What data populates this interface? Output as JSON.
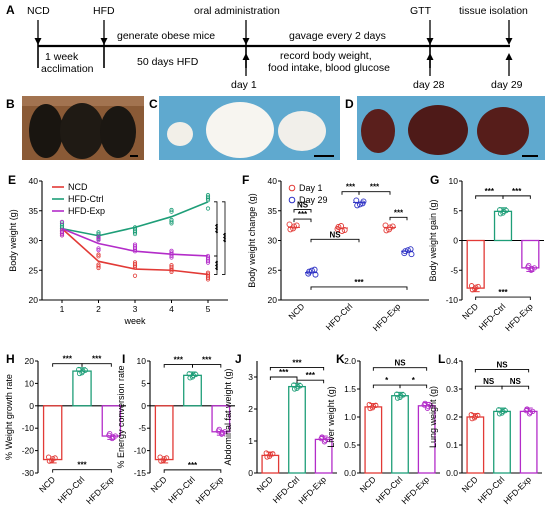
{
  "panels": {
    "A": "A",
    "B": "B",
    "C": "C",
    "D": "D",
    "E": "E",
    "F": "F",
    "G": "G",
    "H": "H",
    "I": "I",
    "J": "J",
    "K": "K",
    "L": "L"
  },
  "timeline": {
    "top": [
      "NCD",
      "HFD",
      "oral administration",
      "GTT",
      "tissue isolation"
    ],
    "segments": [
      "generate obese mice",
      "gavage every 2 days"
    ],
    "below": [
      "1 week",
      "acclimation",
      "50 days HFD",
      "record body weight,",
      "food intake, blood glucose"
    ],
    "days": [
      "day 1",
      "day 28",
      "day 29"
    ]
  },
  "colors": {
    "ncd": "#e23a36",
    "ctrl": "#1e9e78",
    "exp": "#b32cc9",
    "day1": "#e23a36",
    "day29": "#2b2fc4",
    "photo_blue": "#5fa9cf",
    "photo_wood": "#8a5a36"
  },
  "groups": [
    "NCD",
    "HFD-Ctrl",
    "HFD-Exp"
  ],
  "chart_data": [
    {
      "id": "E",
      "type": "line",
      "xlabel": "week",
      "ylabel": "Body weight (g)",
      "x": [
        1,
        2,
        3,
        4,
        5
      ],
      "ylim": [
        20,
        40
      ],
      "yticks": [
        20,
        25,
        30,
        35,
        40
      ],
      "series": [
        {
          "name": "NCD",
          "values": [
            32,
            26.5,
            25.2,
            25,
            24.3
          ]
        },
        {
          "name": "HFD-Ctrl",
          "values": [
            32,
            30.8,
            32.2,
            34,
            36.5
          ]
        },
        {
          "name": "HFD-Exp",
          "values": [
            32,
            29.5,
            28.2,
            27.7,
            27.4
          ]
        }
      ],
      "annotations": [
        "***",
        "***",
        "***"
      ]
    },
    {
      "id": "F",
      "type": "scatter",
      "ylabel": "Body weight change (g)",
      "ylim": [
        20,
        40
      ],
      "yticks": [
        20,
        25,
        30,
        35,
        40
      ],
      "categories": [
        "NCD",
        "HFD-Ctrl",
        "HFD-Exp"
      ],
      "series": [
        {
          "name": "Day 1",
          "values": [
            32.2,
            32.1,
            32.2
          ]
        },
        {
          "name": "Day 29",
          "values": [
            24.6,
            36.4,
            28.2
          ]
        }
      ],
      "annotations": [
        "NS",
        "***",
        "***",
        "***",
        "NS",
        "***",
        "***"
      ]
    },
    {
      "id": "G",
      "type": "bar",
      "ylabel": "Body weight gain (g)",
      "ylim": [
        -10,
        10
      ],
      "yticks": [
        -10,
        -5,
        0,
        5,
        10
      ],
      "categories": [
        "NCD",
        "HFD-Ctrl",
        "HFD-Exp"
      ],
      "values": [
        -8,
        4.9,
        -4.6
      ],
      "annotations": [
        "***",
        "***",
        "***"
      ]
    },
    {
      "id": "H",
      "type": "bar",
      "ylabel": "% Weight growth rate",
      "ylim": [
        -30,
        20
      ],
      "yticks": [
        -30,
        -20,
        -10,
        0,
        10,
        20
      ],
      "categories": [
        "NCD",
        "HFD-Ctrl",
        "HFD-Exp"
      ],
      "values": [
        -24,
        15.5,
        -13.5
      ],
      "annotations": [
        "***",
        "***",
        "***"
      ]
    },
    {
      "id": "I",
      "type": "bar",
      "ylabel": "% Energy conversion rate",
      "ylim": [
        -15,
        10
      ],
      "yticks": [
        -15,
        -10,
        -5,
        0,
        5,
        10
      ],
      "categories": [
        "NCD",
        "HFD-Ctrl",
        "HFD-Exp"
      ],
      "values": [
        -12,
        6.8,
        -5.8
      ],
      "annotations": [
        "***",
        "***",
        "***"
      ]
    },
    {
      "id": "J",
      "type": "bar",
      "ylabel": "Abdominal fat weight (g)",
      "ylim": [
        0,
        3.5
      ],
      "yticks": [
        0,
        1,
        2,
        3
      ],
      "categories": [
        "NCD",
        "HFD-Ctrl",
        "HFD-Exp"
      ],
      "values": [
        0.55,
        2.7,
        1.05
      ],
      "annotations": [
        "***",
        "***",
        "***"
      ]
    },
    {
      "id": "K",
      "type": "bar",
      "ylabel": "Liver weight (g)",
      "ylim": [
        0,
        2
      ],
      "yticks": [
        0,
        0.5,
        1.0,
        1.5,
        2.0
      ],
      "yticklabels": [
        "0.0",
        "0.5",
        "1.0",
        "1.5",
        "2.0"
      ],
      "categories": [
        "NCD",
        "HFD-Ctrl",
        "HFD-Exp"
      ],
      "values": [
        1.18,
        1.38,
        1.2
      ],
      "annotations": [
        "*",
        "*",
        "NS"
      ]
    },
    {
      "id": "L",
      "type": "bar",
      "ylabel": "Lung weight (g)",
      "ylim": [
        0,
        0.4
      ],
      "yticks": [
        0,
        0.1,
        0.2,
        0.3,
        0.4
      ],
      "yticklabels": [
        "0.0",
        "0.1",
        "0.2",
        "0.3",
        "0.4"
      ],
      "categories": [
        "NCD",
        "HFD-Ctrl",
        "HFD-Exp"
      ],
      "values": [
        0.2,
        0.22,
        0.22
      ],
      "annotations": [
        "NS",
        "NS",
        "NS"
      ]
    }
  ]
}
